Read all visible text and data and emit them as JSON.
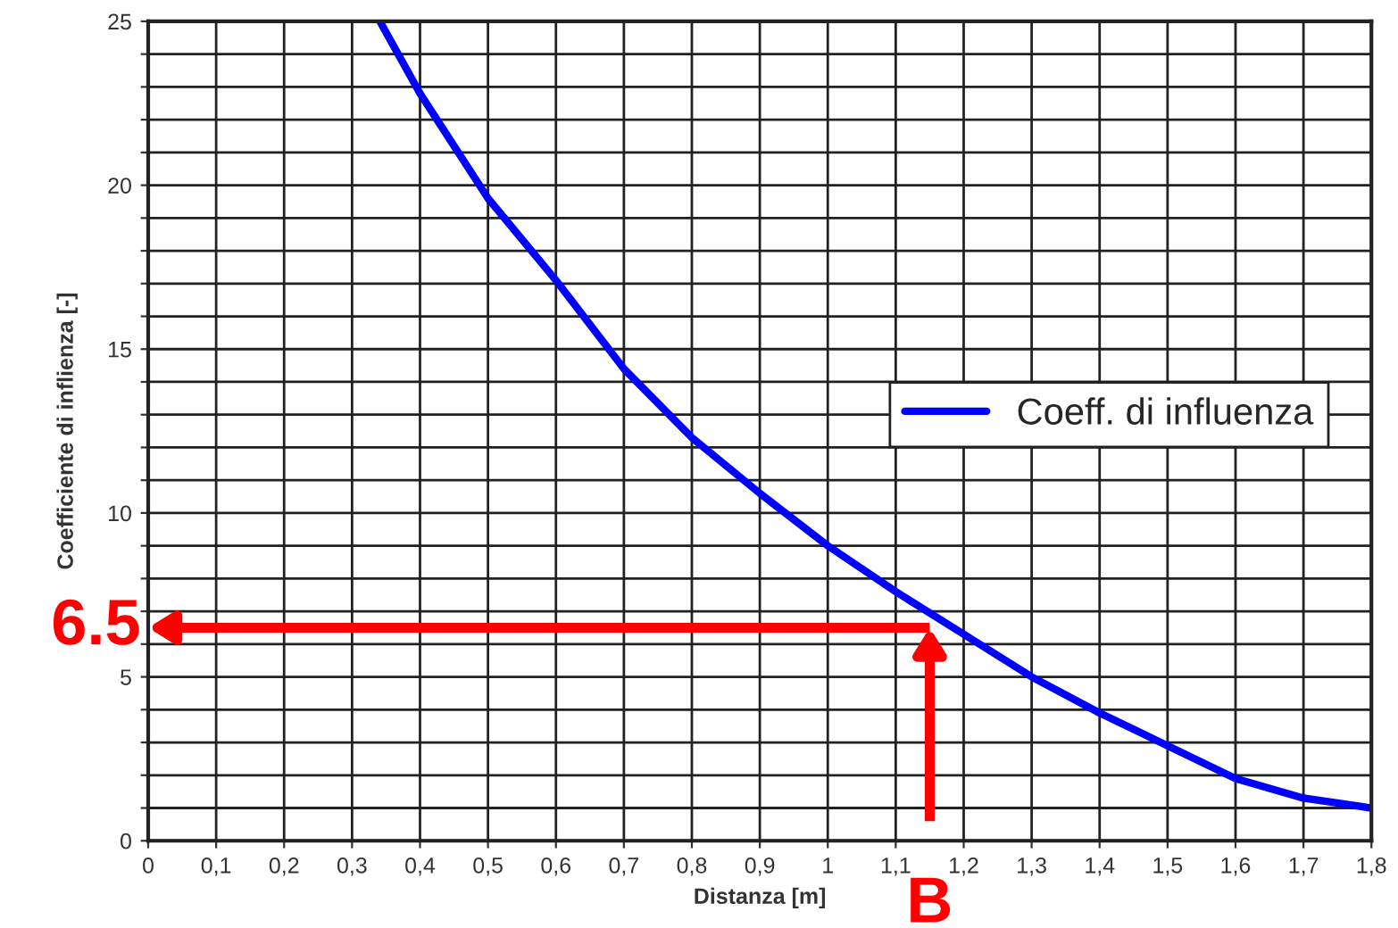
{
  "chart_data": {
    "type": "line",
    "xlabel": "Distanza [m]",
    "ylabel": "Coefficiente di inflienza [-]",
    "x": [
      0.341,
      0.4,
      0.5,
      0.6,
      0.7,
      0.8,
      0.9,
      1.0,
      1.1,
      1.2,
      1.3,
      1.4,
      1.5,
      1.6,
      1.7,
      1.8
    ],
    "series": [
      {
        "name": "Coeff. di influenza",
        "color": "#0000ff",
        "values": [
          25,
          22.8,
          19.6,
          17.1,
          14.4,
          12.3,
          10.6,
          9.0,
          7.6,
          6.3,
          5.0,
          3.9,
          2.9,
          1.9,
          1.3,
          1.0
        ]
      }
    ],
    "xlim": [
      0,
      1.8
    ],
    "xticks": [
      0,
      {
        "value": 0.1,
        "label": "0,1"
      },
      {
        "value": 0.2,
        "label": "0,2"
      },
      {
        "value": 0.3,
        "label": "0,3"
      },
      {
        "value": 0.4,
        "label": "0,4"
      },
      {
        "value": 0.5,
        "label": "0,5"
      },
      {
        "value": 0.6,
        "label": "0,6"
      },
      {
        "value": 0.7,
        "label": "0,7"
      },
      {
        "value": 0.8,
        "label": "0,8"
      },
      {
        "value": 0.9,
        "label": "0,9"
      },
      1,
      {
        "value": 1.1,
        "label": "1,1"
      },
      {
        "value": 1.2,
        "label": "1,2"
      },
      {
        "value": 1.3,
        "label": "1,3"
      },
      {
        "value": 1.4,
        "label": "1,4"
      },
      {
        "value": 1.5,
        "label": "1,5"
      },
      {
        "value": 1.6,
        "label": "1,6"
      },
      {
        "value": 1.7,
        "label": "1,7"
      },
      {
        "value": 1.8,
        "label": "1,8"
      }
    ],
    "ylim": [
      0,
      25
    ],
    "yticks": [
      0,
      {
        "value": 1,
        "label": null
      },
      {
        "value": 2,
        "label": null
      },
      {
        "value": 3,
        "label": null
      },
      {
        "value": 4,
        "label": null
      },
      5,
      {
        "value": 6,
        "label": null
      },
      {
        "value": 7,
        "label": null
      },
      {
        "value": 8,
        "label": null
      },
      {
        "value": 9,
        "label": null
      },
      10,
      {
        "value": 11,
        "label": null
      },
      {
        "value": 12,
        "label": null
      },
      {
        "value": 13,
        "label": null
      },
      {
        "value": 14,
        "label": null
      },
      15,
      {
        "value": 16,
        "label": null
      },
      {
        "value": 17,
        "label": null
      },
      {
        "value": 18,
        "label": null
      },
      {
        "value": 19,
        "label": null
      },
      20,
      {
        "value": 21,
        "label": null
      },
      {
        "value": 22,
        "label": null
      },
      {
        "value": 23,
        "label": null
      },
      {
        "value": 24,
        "label": null
      },
      25
    ],
    "grid": true,
    "legend": "right",
    "marker": "none",
    "line_style": "solid",
    "ref_lines": [
      {
        "axis": "y",
        "value": 6.5,
        "label": "6.5",
        "color": "#ff0000"
      },
      {
        "axis": "x",
        "value": 1.15,
        "label": "B",
        "color": "#ff0000"
      }
    ]
  }
}
